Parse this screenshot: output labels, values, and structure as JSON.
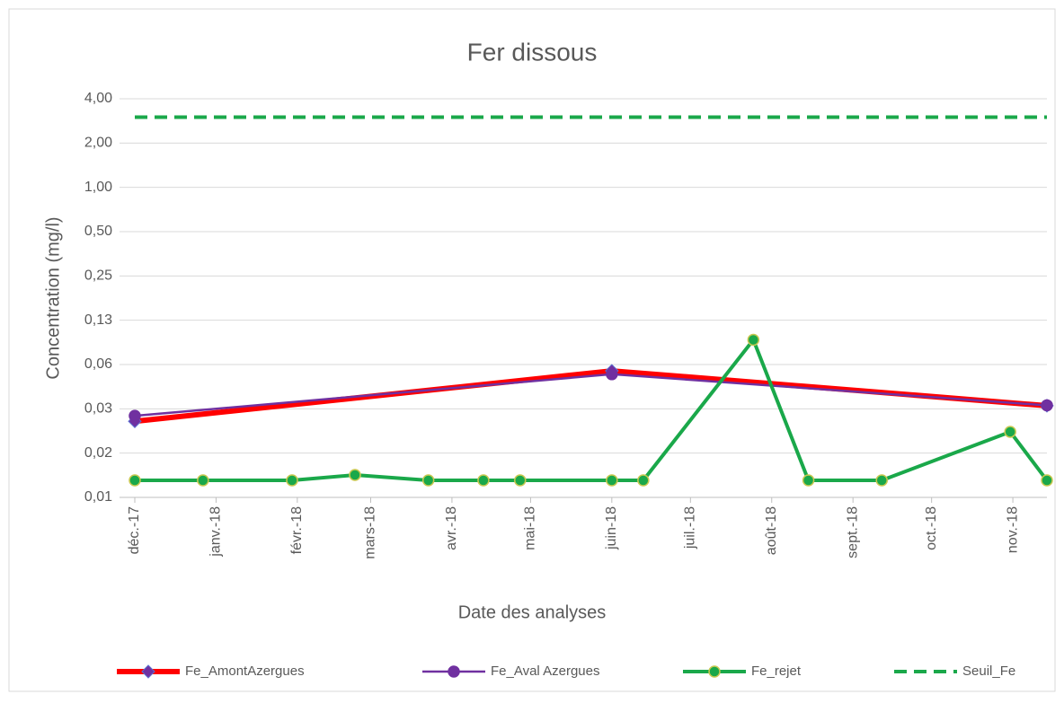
{
  "chart_data": {
    "type": "line",
    "title": "Fer dissous",
    "x_label": "Date des analyses",
    "y_label": "Concentration (mg/l)",
    "log_scale_y": 2,
    "grid": true,
    "legend": "bottom",
    "xlim": [
      "2017-12-01",
      "2018-11-14"
    ],
    "xticks": [
      {
        "value": "2017-12-01",
        "label": "déc.-17"
      },
      {
        "value": "2018-01-01",
        "label": "janv.-18"
      },
      {
        "value": "2018-02-01",
        "label": "févr.-18"
      },
      {
        "value": "2018-03-01",
        "label": "mars-18"
      },
      {
        "value": "2018-04-01",
        "label": "avr.-18"
      },
      {
        "value": "2018-05-01",
        "label": "mai-18"
      },
      {
        "value": "2018-06-01",
        "label": "juin-18"
      },
      {
        "value": "2018-07-01",
        "label": "juil.-18"
      },
      {
        "value": "2018-08-01",
        "label": "août-18"
      },
      {
        "value": "2018-09-01",
        "label": "sept.-18"
      },
      {
        "value": "2018-10-01",
        "label": "oct.-18"
      },
      {
        "value": "2018-11-01",
        "label": "nov.-18"
      }
    ],
    "ylim": [
      0.0078125,
      4
    ],
    "yticks": [
      {
        "value": 0.0078125,
        "label": "0,01"
      },
      {
        "value": 0.015625,
        "label": "0,02"
      },
      {
        "value": 0.03125,
        "label": "0,03"
      },
      {
        "value": 0.0625,
        "label": "0,06"
      },
      {
        "value": 0.125,
        "label": "0,13"
      },
      {
        "value": 0.25,
        "label": "0,25"
      },
      {
        "value": 0.5,
        "label": "0,50"
      },
      {
        "value": 1,
        "label": "1,00"
      },
      {
        "value": 2,
        "label": "2,00"
      },
      {
        "value": 4,
        "label": "4,00"
      }
    ],
    "series": [
      {
        "name": "Fe_AmontAzergues",
        "color": "#ff0000",
        "marker": "diamond",
        "marker_color": "#7030a0",
        "width": 6,
        "x": [
          "2017-12-01",
          "2018-06-01",
          "2018-11-14"
        ],
        "values": [
          0.0257,
          0.0566,
          0.0328
        ]
      },
      {
        "name": "Fe_Aval Azergues",
        "color": "#7030a0",
        "marker": "circle",
        "marker_color": "#7030a0",
        "width": 2.5,
        "x": [
          "2017-12-01",
          "2018-06-01",
          "2018-11-14"
        ],
        "values": [
          0.028,
          0.0537,
          0.033
        ]
      },
      {
        "name": "Fe_rejet",
        "color": "#1aa84a",
        "marker": "circle",
        "marker_color": "#1aa84a",
        "width": 4,
        "x": [
          "2017-12-01",
          "2017-12-27",
          "2018-01-30",
          "2018-02-23",
          "2018-03-23",
          "2018-04-13",
          "2018-04-27",
          "2018-06-01",
          "2018-06-13",
          "2018-07-25",
          "2018-08-15",
          "2018-09-12",
          "2018-10-31",
          "2018-11-14"
        ],
        "values": [
          0.0102,
          0.0102,
          0.0102,
          0.0111,
          0.0102,
          0.0102,
          0.0102,
          0.0102,
          0.0102,
          0.092,
          0.0102,
          0.0102,
          0.0218,
          0.0102
        ]
      },
      {
        "name": "Seuil_Fe",
        "color": "#1aa84a",
        "marker": "none",
        "dashed": true,
        "width": 4,
        "x": [
          "2017-12-01",
          "2018-11-14"
        ],
        "values": [
          3,
          3
        ]
      }
    ]
  }
}
